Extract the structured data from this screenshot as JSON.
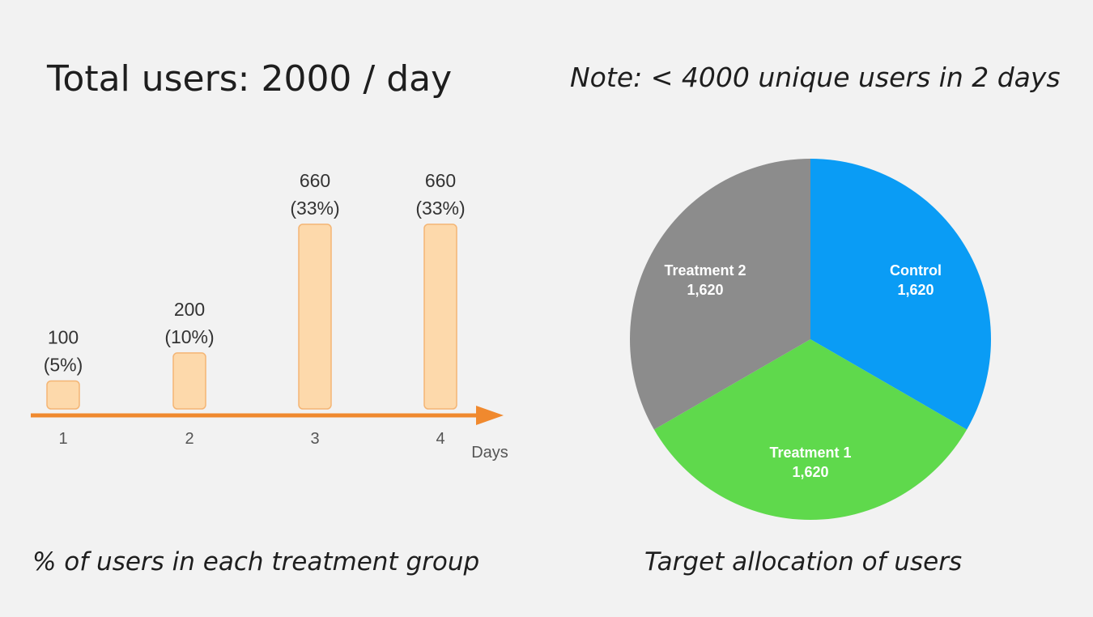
{
  "header": {
    "title": "Total users: 2000 / day",
    "note": "Note: < 4000 unique users in 2 days"
  },
  "captions": {
    "left": "% of users in each treatment group",
    "right": "Target allocation of users"
  },
  "colors": {
    "bar_fill": "#fdd9ab",
    "bar_stroke": "#f4b574",
    "axis_arrow": "#f0892e",
    "control": "#0a9cf5",
    "treatment1": "#5fd94c",
    "treatment2": "#8c8c8c"
  },
  "chart_data": [
    {
      "type": "bar",
      "xlabel": "Days",
      "categories": [
        "1",
        "2",
        "3",
        "4"
      ],
      "values": [
        100,
        200,
        660,
        660
      ],
      "percents": [
        "5%",
        "10%",
        "33%",
        "33%"
      ],
      "labels": [
        {
          "count": "100",
          "pct": "(5%)"
        },
        {
          "count": "200",
          "pct": "(10%)"
        },
        {
          "count": "660",
          "pct": "(33%)"
        },
        {
          "count": "660",
          "pct": "(33%)"
        }
      ],
      "ylim": [
        0,
        700
      ]
    },
    {
      "type": "pie",
      "slices": [
        {
          "name": "Control",
          "value": 1620,
          "display": "1,620",
          "color": "#0a9cf5"
        },
        {
          "name": "Treatment 1",
          "value": 1620,
          "display": "1,620",
          "color": "#5fd94c"
        },
        {
          "name": "Treatment 2",
          "value": 1620,
          "display": "1,620",
          "color": "#8c8c8c"
        }
      ]
    }
  ]
}
